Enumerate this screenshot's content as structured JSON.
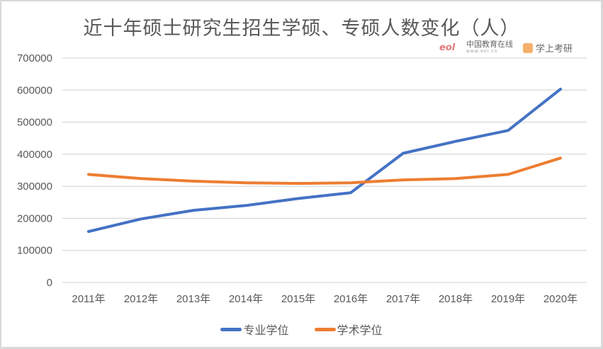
{
  "title": "近十年硕士研究生招生学硕、专硕人数变化（人）",
  "watermarks": [
    {
      "name": "中国教育在线",
      "sub": "www.eol.cn"
    },
    {
      "name": "学上考研",
      "sub": ""
    }
  ],
  "colors": {
    "professional": "#4472C4",
    "academic": "#ED7D31",
    "grid": "#d9d9d9",
    "text": "#595959"
  },
  "legend": {
    "professional": "专业学位",
    "academic": "学术学位"
  },
  "chart_data": {
    "type": "line",
    "title": "近十年硕士研究生招生学硕、专硕人数变化（人）",
    "xlabel": "",
    "ylabel": "",
    "categories": [
      "2011年",
      "2012年",
      "2013年",
      "2014年",
      "2015年",
      "2016年",
      "2017年",
      "2018年",
      "2019年",
      "2020年"
    ],
    "series": [
      {
        "name": "专业学位",
        "color": "#4472C4",
        "values": [
          159000,
          198000,
          225000,
          240000,
          262000,
          280000,
          403000,
          440000,
          474000,
          603000
        ]
      },
      {
        "name": "学术学位",
        "color": "#ED7D31",
        "values": [
          337000,
          324000,
          316000,
          311000,
          309000,
          311000,
          320000,
          324000,
          337000,
          388000
        ]
      }
    ],
    "yticks": [
      0,
      100000,
      200000,
      300000,
      400000,
      500000,
      600000,
      700000
    ],
    "ylim": [
      0,
      700000
    ],
    "grid": true,
    "legend_position": "bottom"
  }
}
